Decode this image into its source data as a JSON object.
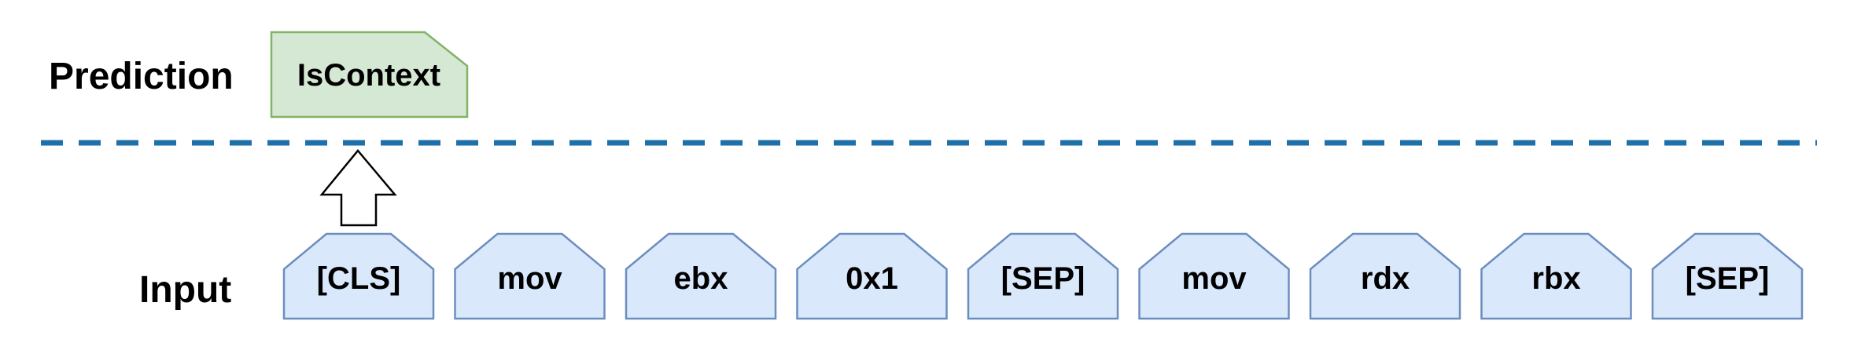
{
  "labels": {
    "prediction": "Prediction",
    "input": "Input"
  },
  "prediction": {
    "token": "IsContext"
  },
  "input": {
    "tokens": [
      "[CLS]",
      "mov",
      "ebx",
      "0x1",
      "[SEP]",
      "mov",
      "rdx",
      "rbx",
      "[SEP]"
    ]
  },
  "colors": {
    "prediction_fill": "#d5e8d4",
    "prediction_stroke": "#82b366",
    "input_fill": "#dae8fc",
    "input_stroke": "#6c8ebf",
    "divider": "#1f6fa8",
    "arrow_stroke": "#000000"
  }
}
